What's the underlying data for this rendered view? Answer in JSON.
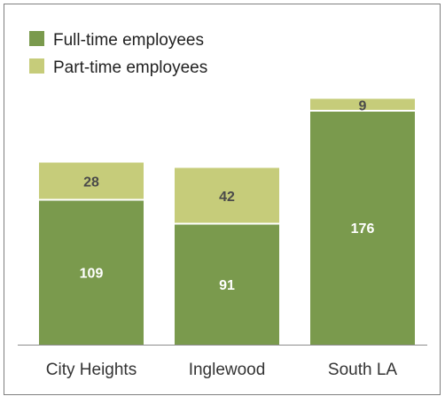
{
  "chart_data": {
    "type": "bar",
    "stacked": true,
    "categories": [
      "City Heights",
      "Inglewood",
      "South LA"
    ],
    "series": [
      {
        "name": "Full-time employees",
        "values": [
          109,
          91,
          176
        ],
        "color": "#7a9a4d"
      },
      {
        "name": "Part-time employees",
        "values": [
          28,
          42,
          9
        ],
        "color": "#c6cc7a"
      }
    ],
    "title": "",
    "xlabel": "",
    "ylabel": "",
    "ylim": [
      0,
      185
    ],
    "grid": false,
    "legend_position": "top-left",
    "data_label_color_fulltime": "#ffffff",
    "data_label_color_parttime": "#4a4a4a"
  }
}
